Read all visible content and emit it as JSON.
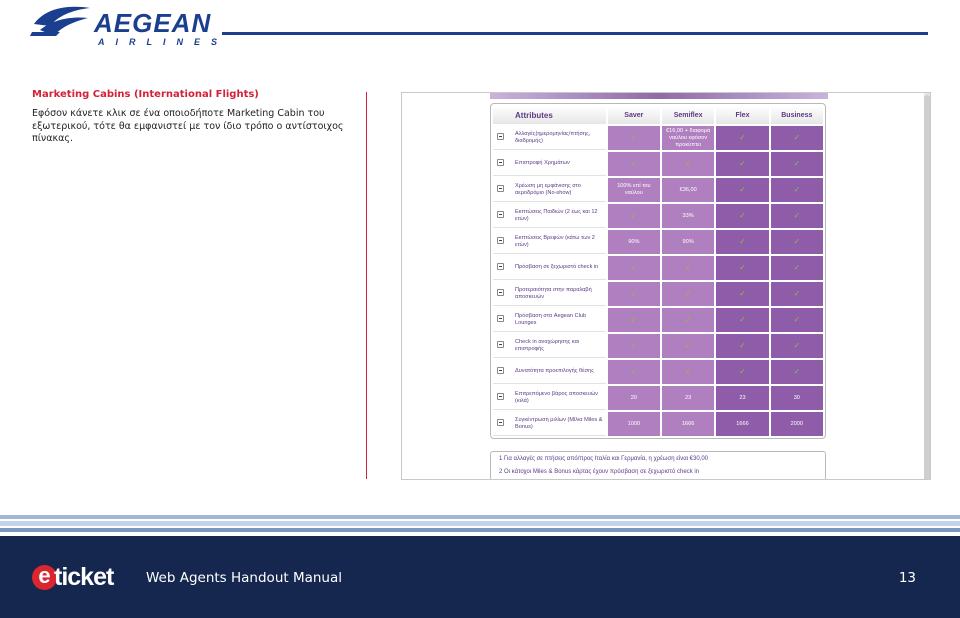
{
  "header": {
    "brand": "AEGEAN",
    "brand_sub": "AIRLINES"
  },
  "section": {
    "title": "Marketing Cabins (International Flights)",
    "body": "Εφόσον κάνετε κλικ σε ένα οποιοδήποτε Marketing Cabin του εξωτερικού, τότε θα εμφανιστεί με τον ίδιο τρόπο ο αντίστοιχος πίνακας."
  },
  "screenshot": {
    "header": {
      "attributes": "Attributes",
      "saver": "Saver",
      "semiflex": "Semiflex",
      "flex": "Flex",
      "business": "Business"
    },
    "rows": [
      {
        "label": "Αλλαγές(ημερομηνίας/πτήσης, διαδρομής)",
        "saver": "✓",
        "semiflex": "€16,00 + διαφορά ναύλου εφόσον προκύπτει",
        "flex": "✓",
        "business": "✓"
      },
      {
        "label": "Επιστροφή Χρημάτων",
        "saver": "✓",
        "semiflex": "✓",
        "flex": "✓",
        "business": "✓"
      },
      {
        "label": "Χρέωση μη εμφάνισης στο αεροδρόμιο (No-show)",
        "saver": "100% επί του ναύλου",
        "semiflex": "€36,00",
        "flex": "✓",
        "business": "✓"
      },
      {
        "label": "Εκπτώσεις Παιδιών (2 έως και 12 ετών)",
        "saver": "✓",
        "semiflex": "33%",
        "flex": "✓",
        "business": "✓"
      },
      {
        "label": "Εκπτώσεις Βρεφών (κάτω των 2 ετών)",
        "saver": "90%",
        "semiflex": "90%",
        "flex": "✓",
        "business": "✓"
      },
      {
        "label": "Πρόσβαση σε ξεχωριστό check in",
        "saver": "✓",
        "semiflex": "✓",
        "flex": "✓",
        "business": "✓"
      },
      {
        "label": "Προτεραιότητα στην παραλαβή αποσκευών",
        "saver": "✓",
        "semiflex": "✓",
        "flex": "✓",
        "business": "✓"
      },
      {
        "label": "Πρόσβαση στα Aegean Club Lounges",
        "saver": "✓",
        "semiflex": "✓",
        "flex": "✓",
        "business": "✓"
      },
      {
        "label": "Check in αναχώρησης και επιστροφής",
        "saver": "✓",
        "semiflex": "✓",
        "flex": "✓",
        "business": "✓"
      },
      {
        "label": "Δυνατότητα προεπιλογής θέσης",
        "saver": "✓",
        "semiflex": "✓",
        "flex": "✓",
        "business": "✓"
      },
      {
        "label": "Επιτρεπόμενο βάρος αποσκευών (κιλά)",
        "saver": "20",
        "semiflex": "23",
        "flex": "23",
        "business": "30"
      },
      {
        "label": "Συγκέντρωση μιλίων (Μίλια Miles & Bonus)",
        "saver": "1000",
        "semiflex": "1666",
        "flex": "1666",
        "business": "2000"
      }
    ],
    "note_1": "1  Για αλλαγές σε πτήσεις από/προς Ιταλία και Γερμανία, η χρέωση είναι €30,00",
    "note_2": "2  Οι κάτοχοι Miles & Bonus κάρτας έχουν πρόσβαση σε ξεχωριστό check in"
  },
  "footer": {
    "logo_e": "e",
    "logo_word": "ticket",
    "title": "Web Agents Handout Manual",
    "page": "13"
  },
  "colors": {
    "brand_blue": "#1b3f8f",
    "accent_red": "#d2213a",
    "footer_navy": "#16274f",
    "cell_light_purple": "#b07fbf",
    "cell_dark_purple": "#8e5ca8",
    "check_green": "#8fbe3e"
  }
}
